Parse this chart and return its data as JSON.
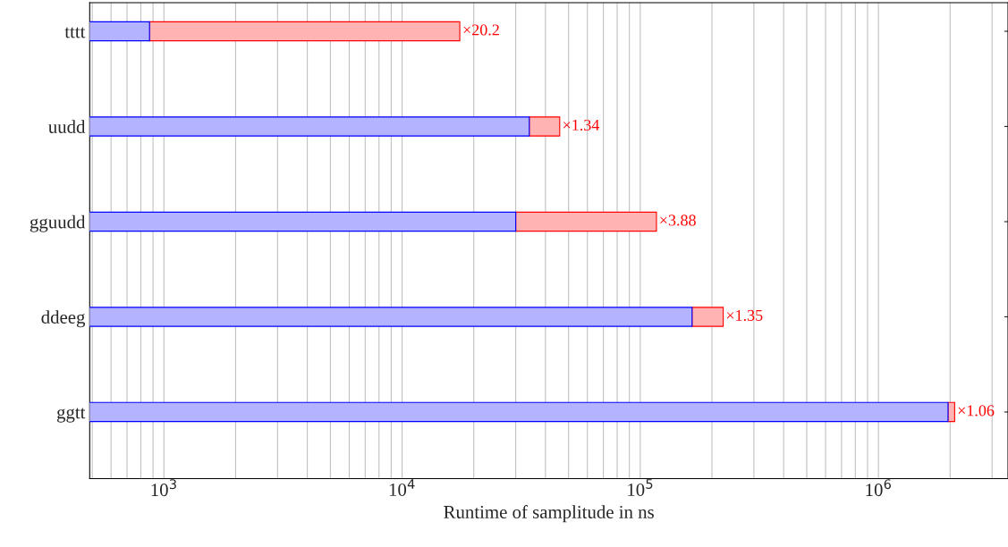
{
  "chart_data": {
    "type": "bar",
    "orientation": "horizontal",
    "xlabel": "Runtime of samplitude in ns",
    "categories": [
      "tttt",
      "uudd",
      "gguudd",
      "ddeeg",
      "ggtt"
    ],
    "series": [
      {
        "color": "#b3b3ff",
        "values": [
          870,
          34200,
          30000,
          165000,
          1960000
        ]
      },
      {
        "color": "#ffb3b3",
        "values": [
          16600,
          11700,
          87000,
          58000,
          130000
        ]
      }
    ],
    "stacked": true,
    "log": "x",
    "xlim": [
      488,
      3500000
    ],
    "xticks": [
      {
        "value": 1000,
        "label": "10$^{3}$"
      },
      {
        "value": 10000,
        "label": "10$^{4}$"
      },
      {
        "value": 100000,
        "label": "10$^{5}$"
      },
      {
        "value": 1000000,
        "label": "10$^{6}$"
      }
    ],
    "grid": "x",
    "annotations": [
      {
        "text": "×20.2",
        "x": 17500,
        "y": "tttt"
      },
      {
        "text": "×1.34",
        "x": 45900,
        "y": "uudd"
      },
      {
        "text": "×3.88",
        "x": 117000,
        "y": "gguudd"
      },
      {
        "text": "×1.35",
        "x": 223000,
        "y": "ddeeg"
      },
      {
        "text": "×1.06",
        "x": 2090000,
        "y": "ggtt"
      }
    ]
  }
}
